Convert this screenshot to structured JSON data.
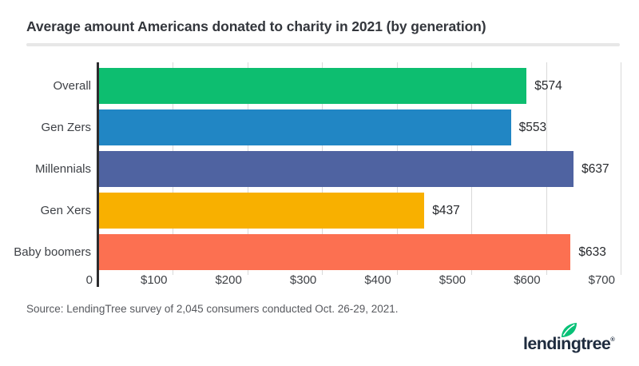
{
  "title": "Average amount Americans donated to charity in 2021 (by generation)",
  "source": "Source: LendingTree survey of 2,045 consumers conducted Oct. 26-29, 2021.",
  "logo": {
    "wordmark": "lendingtree",
    "registered": "®",
    "leaf_color": "#08c177",
    "text_color": "#1e2b3e"
  },
  "chart_data": {
    "type": "bar",
    "orientation": "horizontal",
    "title": "Average amount Americans donated to charity in 2021 (by generation)",
    "categories": [
      "Overall",
      "Gen Zers",
      "Millennials",
      "Gen Xers",
      "Baby boomers"
    ],
    "values": [
      574,
      553,
      637,
      437,
      633
    ],
    "value_labels": [
      "$574",
      "$553",
      "$637",
      "$437",
      "$633"
    ],
    "bar_colors": [
      "#0dbe70",
      "#2186c4",
      "#4f63a1",
      "#f8b000",
      "#fc7051"
    ],
    "x_ticks": [
      "0",
      "$100",
      "$200",
      "$300",
      "$400",
      "$500",
      "$600",
      "$700"
    ],
    "x_tick_values": [
      0,
      100,
      200,
      300,
      400,
      500,
      600,
      700
    ],
    "xlim": [
      0,
      700
    ],
    "xlabel": "",
    "ylabel": "",
    "grid": true,
    "gridline_color": "#d9d9d9",
    "axis_color": "#2c2c2e",
    "legend": false
  }
}
